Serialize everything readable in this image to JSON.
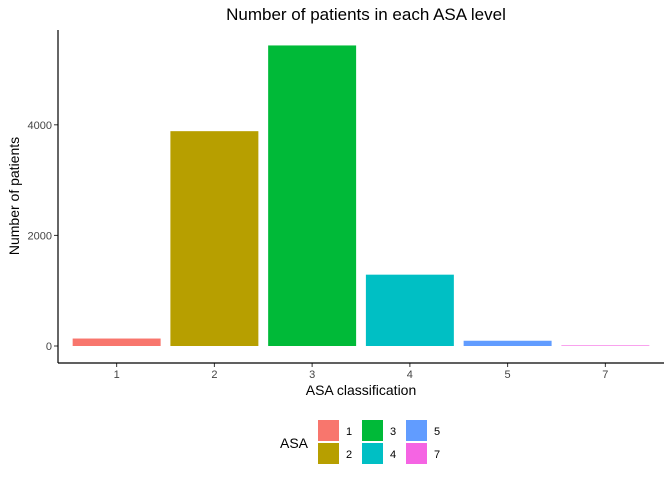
{
  "chart_data": {
    "type": "bar",
    "title": "Number of patients in each ASA level",
    "xlabel": "ASA classification",
    "ylabel": "Number of patients",
    "categories": [
      "1",
      "2",
      "3",
      "4",
      "5",
      "7"
    ],
    "values": [
      135,
      3885,
      5435,
      1290,
      95,
      8
    ],
    "colors": [
      "#F8766D",
      "#B79F00",
      "#00BA38",
      "#00BFC4",
      "#619CFF",
      "#F564E3"
    ],
    "yticks": [
      0,
      2000,
      4000
    ],
    "ylim": [
      0,
      5700
    ],
    "grid": false,
    "legend": {
      "title": "ASA",
      "placement": "bottom",
      "items": [
        "1",
        "2",
        "3",
        "4",
        "5",
        "7"
      ]
    }
  }
}
